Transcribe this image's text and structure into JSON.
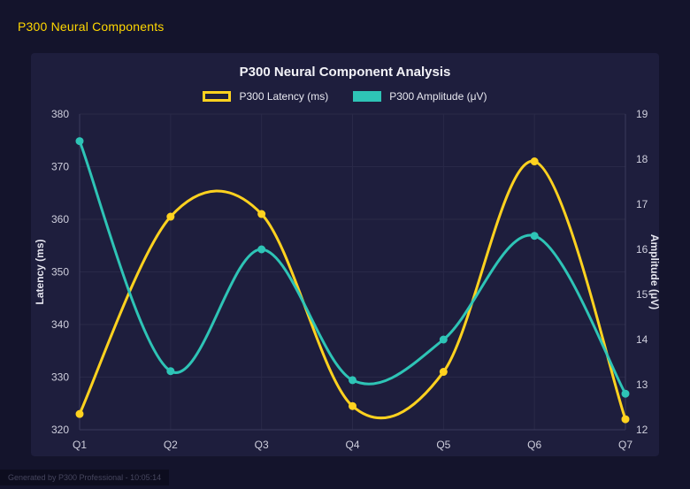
{
  "page": {
    "title": "P300 Neural Components",
    "title_color": "#ffd700",
    "footer": "Generated by P300 Professional - 10:05:14"
  },
  "chart_data": {
    "type": "line",
    "title": "P300 Neural Component Analysis",
    "categories": [
      "Q1",
      "Q2",
      "Q3",
      "Q4",
      "Q5",
      "Q6",
      "Q7"
    ],
    "series": [
      {
        "name": "P300 Latency (ms)",
        "axis": "left",
        "color": "#ffd21f",
        "values": [
          323,
          360.5,
          361,
          324.5,
          331,
          371,
          322
        ]
      },
      {
        "name": "P300 Amplitude (μV)",
        "axis": "right",
        "color": "#2ec4b6",
        "values": [
          18.4,
          13.3,
          16.0,
          13.1,
          14.0,
          16.3,
          12.8
        ]
      }
    ],
    "left_axis": {
      "label": "Latency (ms)",
      "min": 320,
      "max": 380,
      "step": 10
    },
    "right_axis": {
      "label": "Amplitude (μV)",
      "min": 12,
      "max": 19,
      "step": 1
    },
    "grid": true,
    "legend_position": "top",
    "line_style": "smooth"
  }
}
